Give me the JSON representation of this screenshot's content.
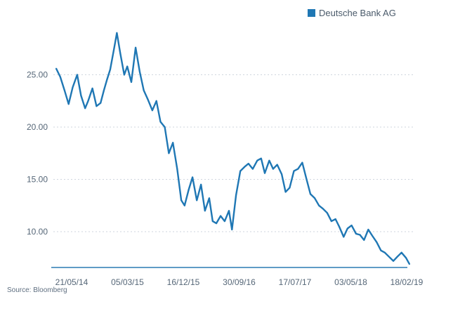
{
  "source_label": "Source: Bloomberg",
  "colors": {
    "series": "#1f77b4",
    "grid": "#cfd6de",
    "axis": "#2a7ab4",
    "text": "#556677"
  },
  "chart_data": {
    "type": "line",
    "title": "",
    "xlabel": "",
    "ylabel": "",
    "ylim": [
      6.5,
      30
    ],
    "grid": true,
    "legend_position": "top-right",
    "y_ticks": [
      "10.00",
      "15.00",
      "20.00",
      "25.00"
    ],
    "y_tick_values": [
      10,
      15,
      20,
      25
    ],
    "x_ticks": [
      "21/05/14",
      "05/03/15",
      "16/12/15",
      "30/09/16",
      "17/07/17",
      "03/05/18",
      "18/02/19"
    ],
    "series": [
      {
        "name": "Deutsche Bank AG",
        "color": "#1f77b4",
        "x": [
          "2014-05-21",
          "2014-06-10",
          "2014-07-01",
          "2014-07-21",
          "2014-08-10",
          "2014-09-01",
          "2014-09-20",
          "2014-10-10",
          "2014-10-25",
          "2014-11-15",
          "2014-12-05",
          "2014-12-25",
          "2015-01-10",
          "2015-01-25",
          "2015-02-10",
          "2015-03-01",
          "2015-03-15",
          "2015-04-01",
          "2015-04-20",
          "2015-05-05",
          "2015-05-25",
          "2015-06-15",
          "2015-07-05",
          "2015-07-25",
          "2015-08-15",
          "2015-09-05",
          "2015-09-25",
          "2015-10-15",
          "2015-11-05",
          "2015-11-25",
          "2015-12-15",
          "2016-01-05",
          "2016-01-25",
          "2016-02-10",
          "2016-03-01",
          "2016-03-20",
          "2016-04-10",
          "2016-05-01",
          "2016-05-20",
          "2016-06-10",
          "2016-06-27",
          "2016-07-15",
          "2016-08-05",
          "2016-08-25",
          "2016-09-15",
          "2016-09-30",
          "2016-10-20",
          "2016-11-10",
          "2016-12-01",
          "2016-12-20",
          "2017-01-10",
          "2017-02-01",
          "2017-02-20",
          "2017-03-10",
          "2017-04-01",
          "2017-04-20",
          "2017-05-10",
          "2017-06-01",
          "2017-06-20",
          "2017-07-10",
          "2017-07-31",
          "2017-08-20",
          "2017-09-10",
          "2017-10-01",
          "2017-10-20",
          "2017-11-10",
          "2017-12-01",
          "2017-12-20",
          "2018-01-10",
          "2018-01-31",
          "2018-02-20",
          "2018-03-10",
          "2018-04-01",
          "2018-04-20",
          "2018-05-10",
          "2018-06-01",
          "2018-06-20",
          "2018-07-10",
          "2018-07-31",
          "2018-08-20",
          "2018-09-10",
          "2018-10-01",
          "2018-10-20",
          "2018-11-10",
          "2018-12-01",
          "2018-12-20",
          "2019-01-10",
          "2019-02-01",
          "2019-02-18"
        ],
        "values": [
          25.6,
          24.8,
          23.5,
          22.2,
          23.8,
          25.0,
          23.0,
          21.8,
          22.5,
          23.7,
          22.0,
          22.3,
          23.5,
          24.5,
          25.5,
          27.5,
          29.0,
          27.0,
          25.0,
          25.8,
          24.3,
          27.6,
          25.3,
          23.5,
          22.6,
          21.6,
          22.5,
          20.5,
          20.0,
          17.5,
          18.5,
          16.0,
          13.0,
          12.5,
          14.0,
          15.2,
          13.0,
          14.5,
          12.0,
          13.2,
          11.0,
          10.8,
          11.5,
          11.0,
          12.0,
          10.2,
          13.5,
          15.8,
          16.2,
          16.5,
          16.0,
          16.8,
          17.0,
          15.6,
          16.8,
          16.0,
          16.4,
          15.5,
          13.8,
          14.2,
          15.8,
          16.0,
          16.6,
          15.0,
          13.6,
          13.2,
          12.5,
          12.2,
          11.8,
          11.0,
          11.2,
          10.5,
          9.5,
          10.3,
          10.6,
          9.8,
          9.7,
          9.2,
          10.2,
          9.6,
          9.0,
          8.2,
          8.0,
          7.6,
          7.2,
          7.6,
          8.0,
          7.5,
          6.9
        ]
      }
    ]
  }
}
